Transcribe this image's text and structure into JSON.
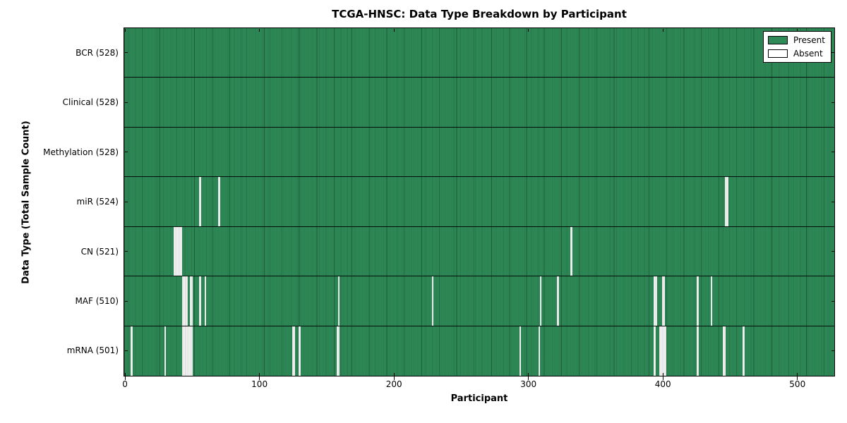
{
  "chart_data": {
    "type": "heatmap",
    "title": "TCGA-HNSC: Data Type Breakdown by Participant",
    "xlabel": "Participant",
    "ylabel": "Data Type (Total Sample Count)",
    "x_range": [
      0,
      528
    ],
    "x_ticks": [
      0,
      100,
      200,
      300,
      400,
      500
    ],
    "n_participants": 528,
    "grid": false,
    "legend_position": "upper right",
    "legend": [
      {
        "label": "Present",
        "color": "#2e8b57"
      },
      {
        "label": "Absent",
        "color": "#ffffff"
      }
    ],
    "colors": {
      "present": "#2e8b57",
      "absent": "#ffffff",
      "cell_edge": "#1d5737",
      "spine": "#000000",
      "background": "#ffffff"
    },
    "rows": [
      {
        "label": "BCR (528)",
        "name": "BCR",
        "total": 528,
        "absent_participants": []
      },
      {
        "label": "Clinical (528)",
        "name": "Clinical",
        "total": 528,
        "absent_participants": []
      },
      {
        "label": "Methylation (528)",
        "name": "Methylation",
        "total": 528,
        "absent_participants": []
      },
      {
        "label": "miR (524)",
        "name": "miR",
        "total": 524,
        "absent_participants": [
          56,
          70,
          447,
          448
        ]
      },
      {
        "label": "CN (521)",
        "name": "CN",
        "total": 521,
        "absent_participants": [
          37,
          38,
          39,
          40,
          41,
          42,
          332
        ]
      },
      {
        "label": "MAF (510)",
        "name": "MAF",
        "total": 510,
        "absent_participants": [
          43,
          44,
          45,
          46,
          49,
          50,
          56,
          60,
          159,
          229,
          309,
          322,
          394,
          395,
          400,
          401,
          426,
          436
        ]
      },
      {
        "label": "mRNA (501)",
        "name": "mRNA",
        "total": 501,
        "absent_participants": [
          5,
          30,
          43,
          44,
          45,
          46,
          47,
          48,
          49,
          50,
          125,
          126,
          130,
          158,
          159,
          294,
          308,
          394,
          398,
          399,
          400,
          401,
          402,
          426,
          445,
          446,
          460
        ]
      }
    ]
  }
}
